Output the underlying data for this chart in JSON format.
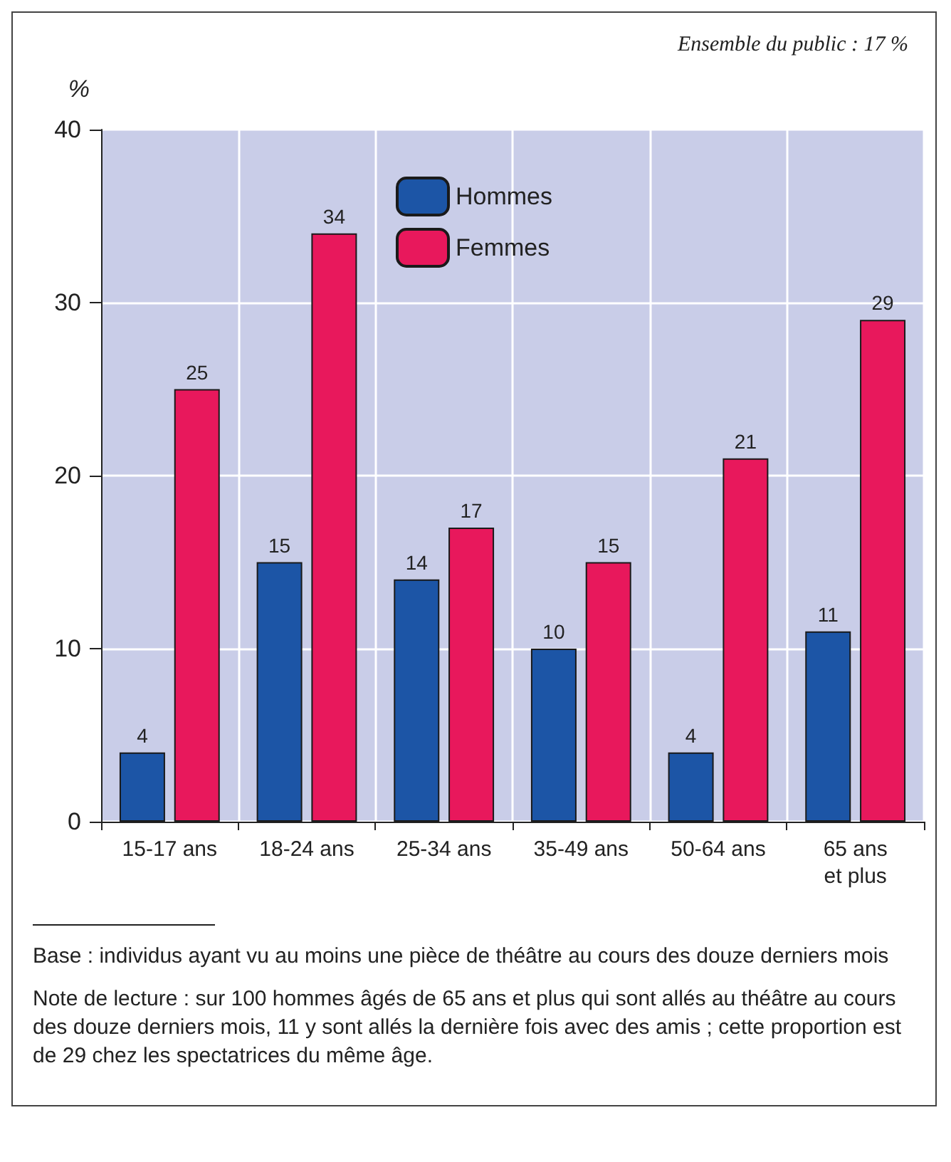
{
  "chart_data": {
    "type": "bar",
    "title": "Ensemble du public : 17 %",
    "ylabel": "%",
    "categories": [
      "15-17 ans",
      "18-24 ans",
      "25-34 ans",
      "35-49 ans",
      "50-64 ans",
      "65 ans\net plus"
    ],
    "series": [
      {
        "name": "Hommes",
        "color": "#1c55a6",
        "values": [
          4,
          15,
          14,
          10,
          4,
          11
        ]
      },
      {
        "name": "Femmes",
        "color": "#e8185c",
        "values": [
          25,
          34,
          17,
          15,
          21,
          29
        ]
      }
    ],
    "ylim": [
      0,
      40
    ],
    "yticks": [
      0,
      10,
      20,
      30,
      40
    ],
    "grid": true,
    "legend": "top",
    "data_labels": true,
    "annotations": [
      "Base : individus ayant vu au moins une pièce de théâtre au cours des douze derniers mois",
      "Note de lecture : sur 100 hommes âgés de 65 ans et plus qui sont allés au théâtre au cours des douze derniers mois, 11 y sont allés la dernière fois avec des amis ; cette proportion est de 29 chez les spectatrices du même âge."
    ]
  }
}
